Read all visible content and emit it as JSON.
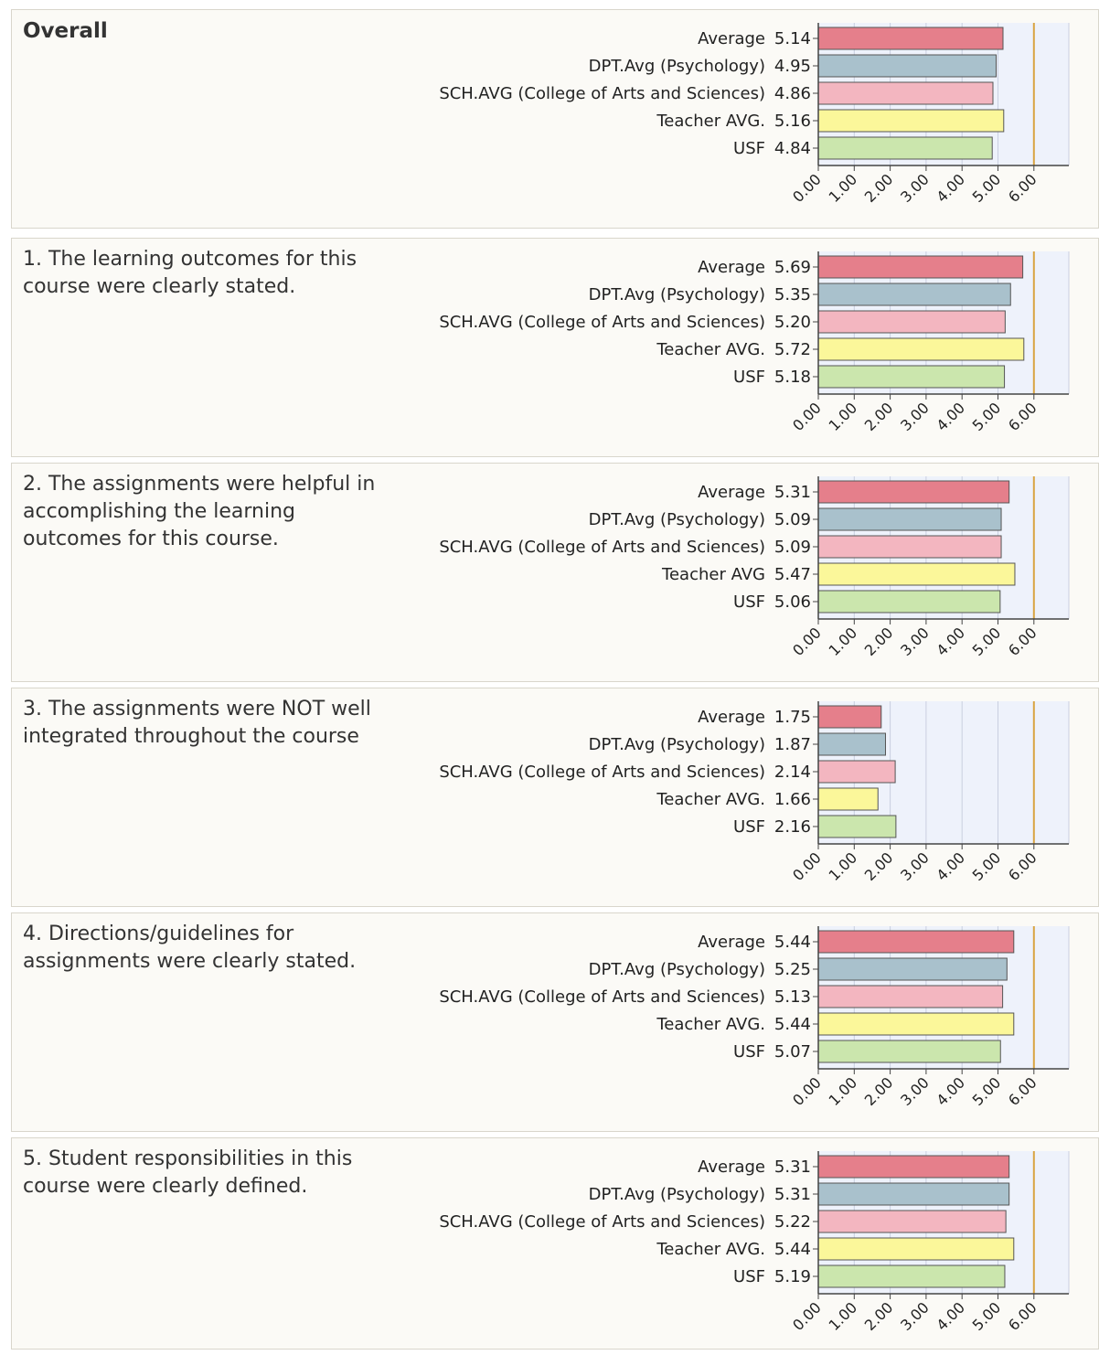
{
  "page": {
    "palette": {
      "Average": "#e57f8b",
      "DPT.Avg (Psychology)": "#a9c1cc",
      "SCH.AVG (College of Arts and Sciences)": "#f3b6c0",
      "Teacher AVG.": "#fbf79a",
      "USF": "#cbe6ad",
      "max_line": "#d9a441"
    }
  },
  "chart_data": [
    {
      "type": "bar",
      "title": "Overall",
      "categories": [
        "Average",
        "DPT.Avg (Psychology)",
        "SCH.AVG (College of Arts and Sciences)",
        "Teacher AVG.",
        "USF"
      ],
      "values": [
        5.14,
        4.95,
        4.86,
        5.16,
        4.84
      ],
      "value_labels": [
        "5.14",
        "4.95",
        "4.86",
        "5.16",
        "4.84"
      ],
      "xlim": [
        0,
        6
      ],
      "xticks": [
        "0.00",
        "1.00",
        "2.00",
        "3.00",
        "4.00",
        "5.00",
        "6.00"
      ],
      "orientation": "horizontal",
      "grid": true
    },
    {
      "type": "bar",
      "title": "1. The learning outcomes for this\ncourse were clearly stated.",
      "categories": [
        "Average",
        "DPT.Avg (Psychology)",
        "SCH.AVG (College of Arts and Sciences)",
        "Teacher AVG.",
        "USF"
      ],
      "values": [
        5.69,
        5.35,
        5.2,
        5.72,
        5.18
      ],
      "value_labels": [
        "5.69",
        "5.35",
        "5.20",
        "5.72",
        "5.18"
      ],
      "xlim": [
        0,
        6
      ],
      "xticks": [
        "0.00",
        "1.00",
        "2.00",
        "3.00",
        "4.00",
        "5.00",
        "6.00"
      ],
      "orientation": "horizontal",
      "grid": true
    },
    {
      "type": "bar",
      "title": "2. The assignments were helpful in\naccomplishing the learning\noutcomes for this course.",
      "categories": [
        "Average",
        "DPT.Avg (Psychology)",
        "SCH.AVG (College of Arts and Sciences)",
        "Teacher AVG",
        "USF"
      ],
      "values": [
        5.31,
        5.09,
        5.09,
        5.47,
        5.06
      ],
      "value_labels": [
        "5.31",
        "5.09",
        "5.09",
        "5.47",
        "5.06"
      ],
      "xlim": [
        0,
        6
      ],
      "xticks": [
        "0.00",
        "1.00",
        "2.00",
        "3.00",
        "4.00",
        "5.00",
        "6.00"
      ],
      "orientation": "horizontal",
      "grid": true
    },
    {
      "type": "bar",
      "title": "3. The assignments were NOT well\nintegrated throughout the course",
      "categories": [
        "Average",
        "DPT.Avg (Psychology)",
        "SCH.AVG (College of Arts and Sciences)",
        "Teacher AVG.",
        "USF"
      ],
      "values": [
        1.75,
        1.87,
        2.14,
        1.66,
        2.16
      ],
      "value_labels": [
        "1.75",
        "1.87",
        "2.14",
        "1.66",
        "2.16"
      ],
      "xlim": [
        0,
        6
      ],
      "xticks": [
        "0.00",
        "1.00",
        "2.00",
        "3.00",
        "4.00",
        "5.00",
        "6.00"
      ],
      "orientation": "horizontal",
      "grid": true
    },
    {
      "type": "bar",
      "title": "4. Directions/guidelines for\nassignments were clearly stated.",
      "categories": [
        "Average",
        "DPT.Avg (Psychology)",
        "SCH.AVG (College of Arts and Sciences)",
        "Teacher AVG.",
        "USF"
      ],
      "values": [
        5.44,
        5.25,
        5.13,
        5.44,
        5.07
      ],
      "value_labels": [
        "5.44",
        "5.25",
        "5.13",
        "5.44",
        "5.07"
      ],
      "xlim": [
        0,
        6
      ],
      "xticks": [
        "0.00",
        "1.00",
        "2.00",
        "3.00",
        "4.00",
        "5.00",
        "6.00"
      ],
      "orientation": "horizontal",
      "grid": true
    },
    {
      "type": "bar",
      "title": "5. Student responsibilities in this\ncourse were clearly defined.",
      "categories": [
        "Average",
        "DPT.Avg (Psychology)",
        "SCH.AVG (College of Arts and Sciences)",
        "Teacher AVG.",
        "USF"
      ],
      "values": [
        5.31,
        5.31,
        5.22,
        5.44,
        5.19
      ],
      "value_labels": [
        "5.31",
        "5.31",
        "5.22",
        "5.44",
        "5.19"
      ],
      "xlim": [
        0,
        6
      ],
      "xticks": [
        "0.00",
        "1.00",
        "2.00",
        "3.00",
        "4.00",
        "5.00",
        "6.00"
      ],
      "orientation": "horizontal",
      "grid": true
    }
  ]
}
